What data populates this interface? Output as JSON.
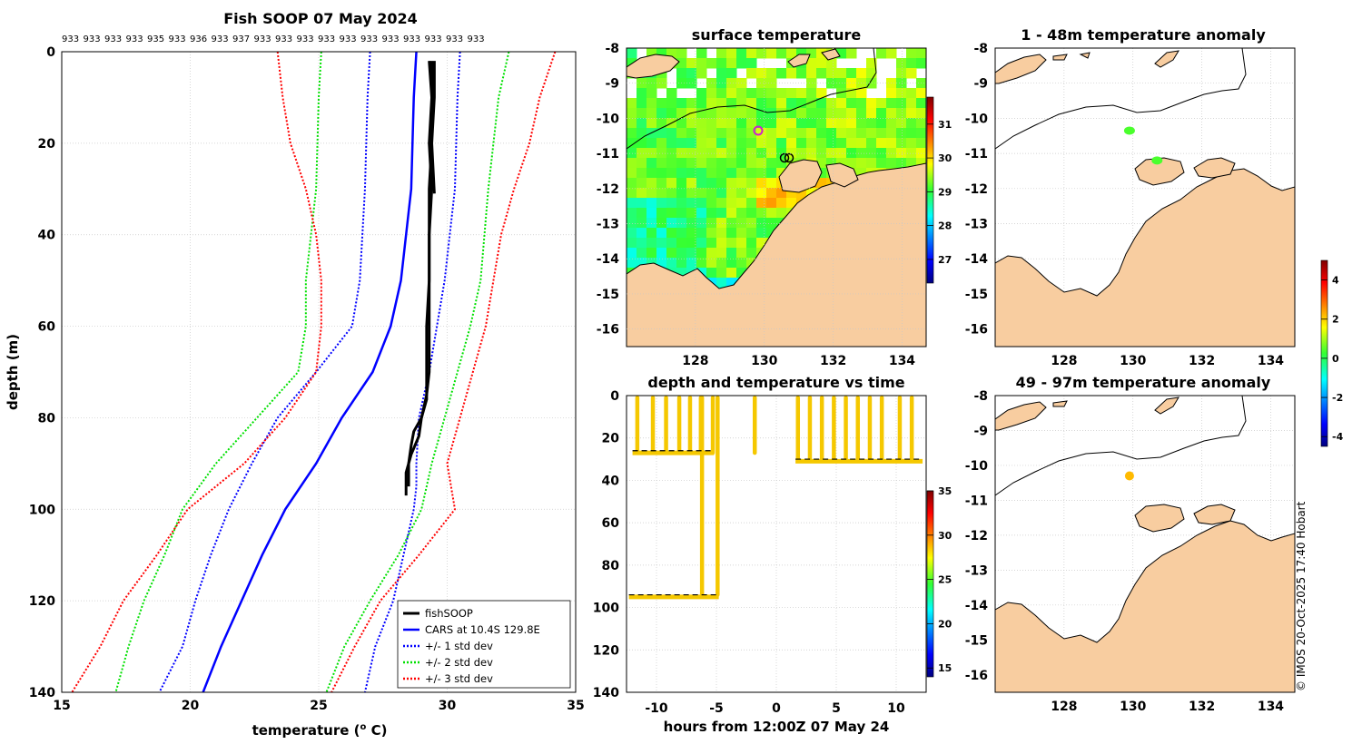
{
  "colors": {
    "land": "#f8cda0",
    "soop": "#000000",
    "cars": "#0000ff",
    "std1": "#0000ff",
    "std2": "#00e000",
    "std3": "#ff0000",
    "track": "#f5c800"
  },
  "watermark": "© IMOS 20-Oct-2025 17:40 Hobart",
  "chart_data": [
    {
      "id": "profile",
      "type": "line",
      "title": "Fish SOOP 07 May 2024",
      "id_labels": [
        "933",
        "933",
        "933",
        "933",
        "935",
        "933",
        "936",
        "933",
        "937",
        "933",
        "933",
        "933",
        "933",
        "933",
        "933",
        "933",
        "933",
        "933",
        "933",
        "933"
      ],
      "xlabel": "temperature (",
      "xlabel_sup": "o",
      "xlabel_unit": " C)",
      "ylabel": "depth (m)",
      "xlim": [
        15,
        35
      ],
      "ylim": [
        140,
        0
      ],
      "xticks": [
        "15",
        "20",
        "25",
        "30",
        "35"
      ],
      "yticks": [
        "0",
        "20",
        "40",
        "60",
        "80",
        "100",
        "120",
        "140"
      ],
      "legend": [
        "fishSOOP",
        "CARS at 10.4S 129.8E",
        "+/- 1 std dev",
        "+/- 2 std dev",
        "+/- 3 std dev"
      ],
      "legend_position": "bottom-right",
      "cars": {
        "depth": [
          0,
          10,
          30,
          50,
          60,
          70,
          75,
          80,
          85,
          90,
          100,
          110,
          120,
          130,
          140
        ],
        "mean": [
          28.8,
          28.7,
          28.6,
          28.2,
          27.8,
          27.1,
          26.5,
          25.9,
          25.4,
          24.9,
          23.7,
          22.8,
          22.0,
          21.2,
          20.5
        ]
      },
      "std_series": [
        {
          "name": "+1 std",
          "depth": [
            0,
            10,
            30,
            50,
            60,
            70,
            80,
            90,
            95,
            100,
            110,
            120,
            130,
            140
          ],
          "temp": [
            30.5,
            30.4,
            30.3,
            29.9,
            29.6,
            29.3,
            28.9,
            28.8,
            28.8,
            28.7,
            28.3,
            27.9,
            27.2,
            26.8
          ]
        },
        {
          "name": "-1 std",
          "depth": [
            0,
            10,
            30,
            50,
            60,
            70,
            80,
            90,
            100,
            110,
            120,
            130,
            140
          ],
          "temp": [
            27.0,
            26.9,
            26.8,
            26.6,
            26.3,
            24.9,
            23.4,
            22.4,
            21.5,
            20.8,
            20.2,
            19.7,
            18.8
          ]
        },
        {
          "name": "+2 std",
          "depth": [
            0,
            10,
            30,
            50,
            60,
            70,
            80,
            90,
            100,
            110,
            120,
            130,
            140
          ],
          "temp": [
            32.4,
            32.0,
            31.6,
            31.3,
            30.9,
            30.4,
            29.9,
            29.4,
            29.0,
            28.1,
            27.0,
            26.0,
            25.3
          ]
        },
        {
          "name": "-2 std",
          "depth": [
            0,
            10,
            30,
            50,
            60,
            70,
            80,
            90,
            100,
            110,
            120,
            130,
            140
          ],
          "temp": [
            25.1,
            25.0,
            24.9,
            24.5,
            24.5,
            24.2,
            22.6,
            21.0,
            19.7,
            19.0,
            18.2,
            17.6,
            17.1
          ]
        },
        {
          "name": "+3 std",
          "depth": [
            0,
            10,
            20,
            30,
            40,
            50,
            60,
            70,
            80,
            90,
            100,
            110,
            120,
            130,
            140
          ],
          "temp": [
            34.2,
            33.6,
            33.2,
            32.6,
            32.1,
            31.8,
            31.5,
            31.0,
            30.5,
            30.0,
            30.3,
            28.9,
            27.4,
            26.4,
            25.5
          ]
        },
        {
          "name": "-3 std",
          "depth": [
            0,
            10,
            20,
            30,
            40,
            50,
            60,
            70,
            80,
            90,
            100,
            110,
            120,
            130,
            140
          ],
          "temp": [
            23.4,
            23.6,
            23.9,
            24.5,
            24.9,
            25.1,
            25.1,
            24.9,
            23.7,
            22.1,
            19.9,
            18.7,
            17.4,
            16.5,
            15.4
          ]
        }
      ],
      "soop_profiles": [
        {
          "depth": [
            2,
            10,
            20,
            30,
            40,
            50,
            60,
            70,
            75,
            80,
            83,
            86,
            90,
            95
          ],
          "temp": [
            29.3,
            29.4,
            29.4,
            29.3,
            29.3,
            29.3,
            29.3,
            29.3,
            29.2,
            29.0,
            28.7,
            28.6,
            28.5,
            28.5
          ]
        },
        {
          "depth": [
            2,
            10,
            20,
            30,
            40,
            50,
            60,
            70,
            76,
            80,
            84,
            88,
            92,
            97
          ],
          "temp": [
            29.4,
            29.4,
            29.3,
            29.4,
            29.3,
            29.3,
            29.2,
            29.2,
            29.2,
            29.0,
            28.9,
            28.6,
            28.4,
            28.4
          ]
        },
        {
          "depth": [
            2,
            10,
            20,
            31
          ],
          "temp": [
            29.5,
            29.5,
            29.4,
            29.5
          ]
        }
      ]
    },
    {
      "id": "sst_map",
      "type": "heatmap",
      "title": "surface temperature",
      "xlim": [
        126,
        134.7
      ],
      "ylim": [
        -16.5,
        -8
      ],
      "xticks": [
        "128",
        "130",
        "132",
        "134"
      ],
      "yticks": [
        "-8",
        "-9",
        "-10",
        "-11",
        "-12",
        "-13",
        "-14",
        "-15",
        "-16"
      ],
      "colorbar_ticks": [
        "27",
        "28",
        "29",
        "30",
        "31"
      ],
      "colorbar_range": [
        26.3,
        31.8
      ]
    },
    {
      "id": "track",
      "type": "scatter",
      "title": "depth and temperature vs time",
      "xlabel": "hours from 12:00Z 07 May 24",
      "xlim": [
        -12.5,
        12.5
      ],
      "ylim": [
        140,
        0
      ],
      "xticks": [
        "-10",
        "-5",
        "0",
        "5",
        "10"
      ],
      "yticks": [
        "0",
        "20",
        "40",
        "60",
        "80",
        "100",
        "120",
        "140"
      ],
      "colorbar_ticks": [
        "15",
        "20",
        "25",
        "30",
        "35"
      ],
      "colorbar_range": [
        14,
        35
      ],
      "bottom_depths": [
        {
          "from": -12,
          "to": -5.2,
          "depth": 26
        },
        {
          "from": -12.3,
          "to": -4.8,
          "depth": 94
        },
        {
          "from": 1.6,
          "to": 12.2,
          "depth": 30
        }
      ],
      "profile_times_shallow": [
        -11.6,
        -10.3,
        -9.2,
        -8.1,
        -7.2,
        -6.3,
        -5.3,
        -1.8
      ],
      "profile_times_deep": [
        -6.2,
        -4.9
      ],
      "profile_times_late": [
        1.8,
        2.8,
        3.8,
        4.8,
        5.8,
        6.8,
        7.8,
        8.8,
        10.3,
        11.3
      ]
    },
    {
      "id": "anom_shallow",
      "type": "scatter",
      "title": "1 - 48m temperature anomaly",
      "xlim": [
        126,
        134.7
      ],
      "ylim": [
        -16.5,
        -8
      ],
      "yticks": [
        "-8",
        "-9",
        "-10",
        "-11",
        "-12",
        "-13",
        "-14",
        "-15",
        "-16"
      ],
      "xticks": [
        "128",
        "130",
        "132",
        "134"
      ],
      "points": [
        {
          "lon": 129.9,
          "lat": -10.35,
          "anomaly": 0.4
        },
        {
          "lon": 130.7,
          "lat": -11.2,
          "anomaly": 0.4
        }
      ]
    },
    {
      "id": "anom_deep",
      "type": "scatter",
      "title": "49 - 97m temperature anomaly",
      "xlim": [
        126,
        134.7
      ],
      "ylim": [
        -16.5,
        -8
      ],
      "yticks": [
        "-8",
        "-9",
        "-10",
        "-11",
        "-12",
        "-13",
        "-14",
        "-15",
        "-16"
      ],
      "xticks": [
        "128",
        "130",
        "132",
        "134"
      ],
      "points": [
        {
          "lon": 129.9,
          "lat": -10.3,
          "anomaly": 2.2
        }
      ]
    },
    {
      "id": "anom_colorbar",
      "type": "heatmap",
      "colorbar_ticks": [
        "-4",
        "-2",
        "0",
        "2",
        "4"
      ],
      "colorbar_range": [
        -4.5,
        5
      ]
    }
  ]
}
